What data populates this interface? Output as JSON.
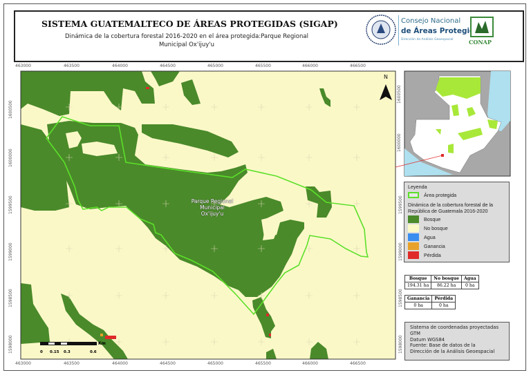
{
  "header": {
    "title": "SISTEMA GUATEMALTECO DE ÁREAS PROTEGIDAS  (SIGAP)",
    "subtitle": "Dinámica de la cobertura forestal 2016-2020 en el área protegida:Parque Regional Municipal Ox'ijuy'u",
    "logo_seal_text": "GOBIERNO DE LA REPÚBLICA DE GUATEMALA",
    "logo_line1": "Consejo Nacional",
    "logo_line2": "de Áreas Protegidas",
    "logo_line3": "Dirección de Análisis Geoespacial",
    "conap_label": "CONAP"
  },
  "map": {
    "x_ticks": [
      "463000",
      "463500",
      "464000",
      "464500",
      "465000",
      "465500",
      "466000",
      "466500"
    ],
    "y_ticks": [
      "1600500",
      "1600000",
      "1599500",
      "1599000",
      "1598500",
      "1598000"
    ],
    "area_label": [
      "Parque Regional",
      "Municipal",
      "Ox'ijuy'u"
    ],
    "north_label": "N",
    "scale": {
      "labels": [
        "0",
        "0.15",
        "0.3",
        "0.6"
      ],
      "unit": "Km"
    },
    "colors": {
      "bosque": "#4a8a2a",
      "no_bosque": "#fbf8c8",
      "agua": "#3a8ef0",
      "ganancia": "#e8a22a",
      "perdida": "#e02a2a",
      "area": "#5ce02a"
    }
  },
  "inset": {
    "y_ticks": [
      "1600500",
      "1600000"
    ]
  },
  "legend": {
    "title": "Leyenda",
    "area": "Área protegida",
    "section": "Dinámica de la cobertura forestal de la República de Guatemala 2016-2020",
    "items": [
      {
        "label": "Bosque",
        "color": "#4a8a2a"
      },
      {
        "label": "No bosque",
        "color": "#fbf8c8"
      },
      {
        "label": "Agua",
        "color": "#3a8ef0"
      },
      {
        "label": "Ganancia",
        "color": "#e8a22a"
      },
      {
        "label": "Pérdida",
        "color": "#e02a2a"
      }
    ]
  },
  "stats": {
    "table1": {
      "headers": [
        "Bosque",
        "No bosque",
        "Agua"
      ],
      "values": [
        "194.31 ha",
        "86.22 ha",
        "0 ha"
      ]
    },
    "table2": {
      "headers": [
        "Ganancia",
        "Pérdida"
      ],
      "values": [
        "0 ha",
        "0 ha"
      ]
    }
  },
  "info": [
    "Sistema de coordenadas proyectadas",
    "GTM",
    "Datum WGS84",
    "Fuente: Base de datos de la",
    "Dirección de la Análisis Geoespacial"
  ]
}
